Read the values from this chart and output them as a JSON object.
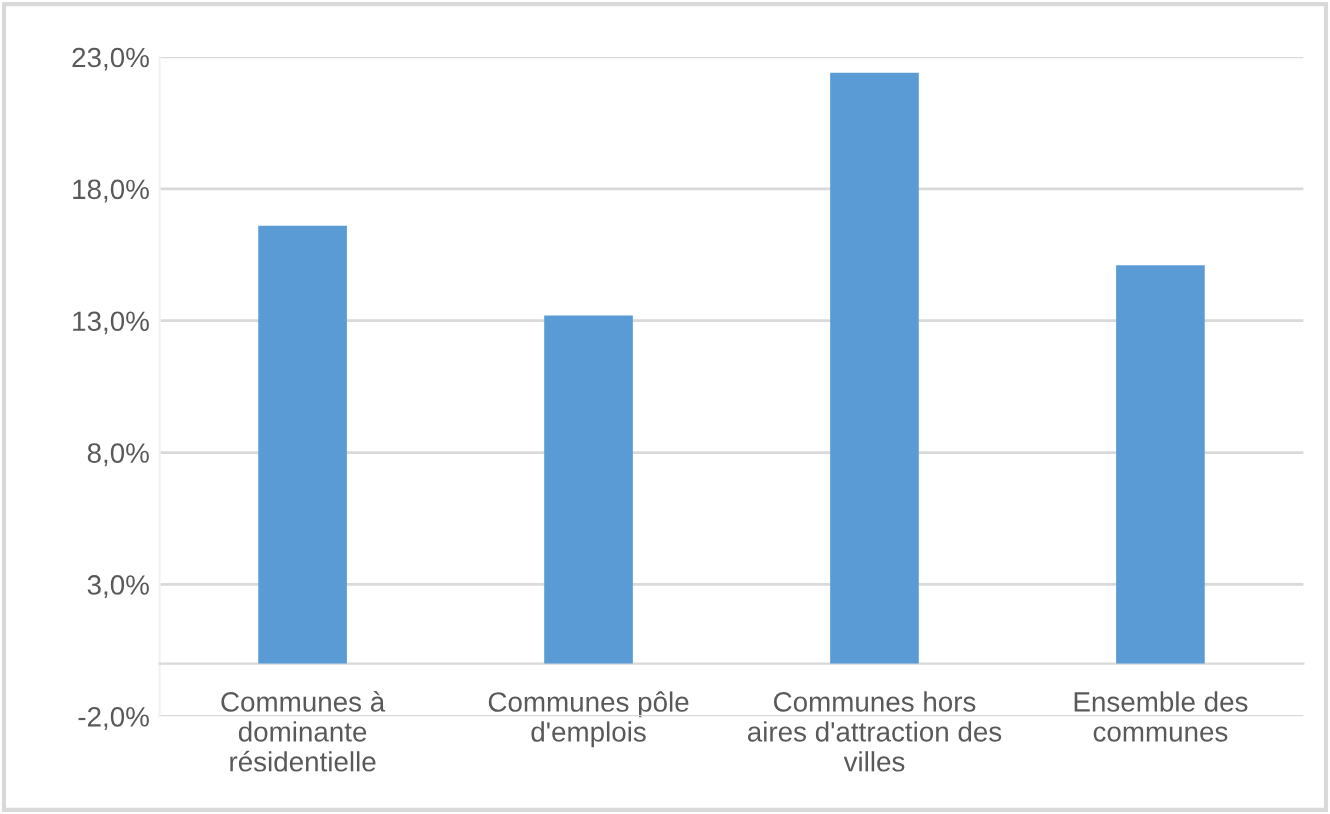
{
  "chart_data": {
    "type": "bar",
    "categories": [
      "Communes à\ndominante\nrésidentielle",
      "Communes pôle\nd'emplois",
      "Communes hors\naires d'attraction des\nvilles",
      "Ensemble des\ncommunes"
    ],
    "values": [
      16.6,
      13.2,
      22.4,
      15.1
    ],
    "color": "#5b9bd5",
    "ylim": [
      -2,
      23
    ],
    "yticks": [
      {
        "value": -2,
        "label": "-2,0%"
      },
      {
        "value": 3,
        "label": "3,0%"
      },
      {
        "value": 8,
        "label": "8,0%"
      },
      {
        "value": 13,
        "label": "13,0%"
      },
      {
        "value": 18,
        "label": "18,0%"
      },
      {
        "value": 23,
        "label": "23,0%"
      }
    ],
    "grid": "y"
  }
}
